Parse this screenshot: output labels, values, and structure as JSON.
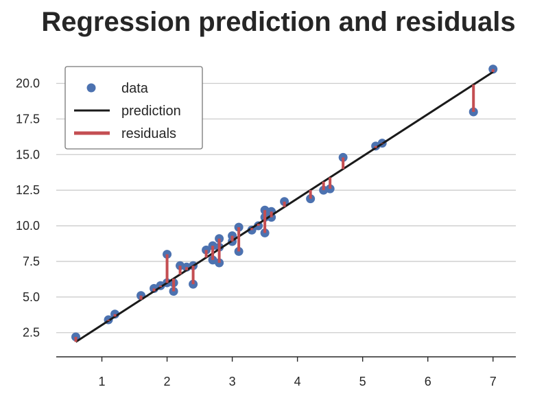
{
  "chart_data": {
    "type": "scatter",
    "title": "Regression prediction and residuals",
    "xlabel": "",
    "ylabel": "",
    "xlim": [
      0.3,
      7.35
    ],
    "ylim": [
      0.8,
      22.0
    ],
    "x_ticks": [
      1,
      2,
      3,
      4,
      5,
      6,
      7
    ],
    "y_ticks": [
      2.5,
      5.0,
      7.5,
      10.0,
      12.5,
      15.0,
      17.5,
      20.0
    ],
    "y_tick_labels": [
      "2.5",
      "5.0",
      "7.5",
      "10.0",
      "12.5",
      "15.0",
      "17.5",
      "20.0"
    ],
    "grid": "horizontal",
    "legend_position": "top-left",
    "legend": [
      "data",
      "prediction",
      "residuals"
    ],
    "colors": {
      "data": "#4c72b0",
      "prediction": "#1a1a1a",
      "residuals": "#c44e52"
    },
    "prediction_line": {
      "x": [
        0.6,
        7.0
      ],
      "y": [
        1.85,
        20.8
      ]
    },
    "series": [
      {
        "name": "data",
        "x": [
          0.6,
          1.1,
          1.2,
          1.6,
          1.8,
          1.9,
          2.0,
          2.0,
          2.1,
          2.1,
          2.2,
          2.3,
          2.4,
          2.4,
          2.6,
          2.7,
          2.7,
          2.8,
          2.8,
          2.8,
          3.0,
          3.0,
          3.1,
          3.1,
          3.3,
          3.4,
          3.5,
          3.5,
          3.5,
          3.6,
          3.6,
          3.8,
          4.2,
          4.4,
          4.5,
          4.7,
          5.2,
          5.3,
          6.7,
          7.0
        ],
        "y": [
          2.2,
          3.4,
          3.8,
          5.1,
          5.6,
          5.8,
          6.0,
          8.0,
          5.4,
          6.0,
          7.2,
          7.1,
          7.2,
          5.9,
          8.3,
          8.6,
          7.6,
          9.1,
          8.5,
          7.4,
          9.3,
          8.9,
          9.9,
          8.2,
          9.7,
          10.0,
          11.1,
          10.6,
          9.5,
          10.6,
          11.0,
          11.7,
          11.9,
          12.5,
          12.6,
          14.8,
          15.6,
          15.8,
          18.0,
          21.0
        ]
      }
    ]
  }
}
